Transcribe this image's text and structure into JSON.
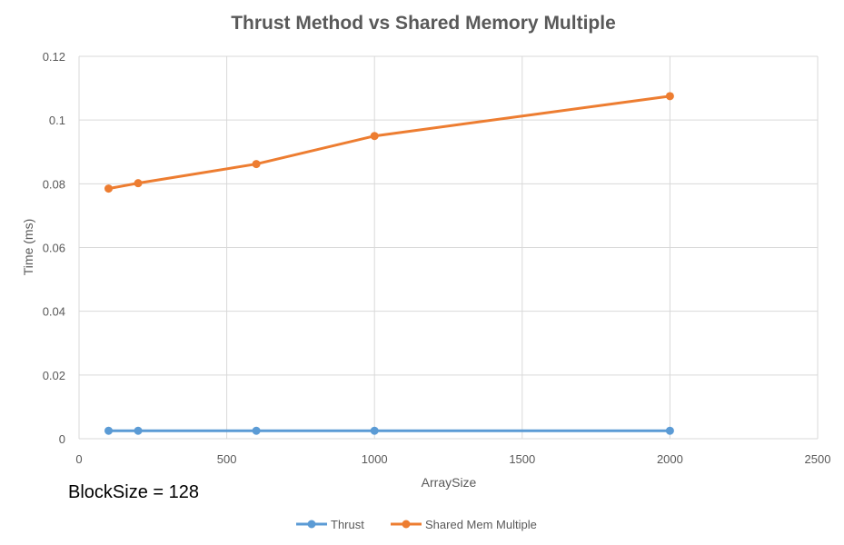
{
  "chart_data": {
    "type": "line",
    "title": "Thrust Method vs Shared Memory Multiple",
    "xlabel": "ArraySize",
    "ylabel": "Time (ms)",
    "xlim": [
      0,
      2500
    ],
    "ylim": [
      0,
      0.12
    ],
    "x_ticks": [
      "0",
      "500",
      "1000",
      "1500",
      "2000",
      "2500"
    ],
    "y_ticks": [
      "0",
      "0.02",
      "0.04",
      "0.06",
      "0.08",
      "0.1",
      "0.12"
    ],
    "grid": true,
    "legend_position": "bottom",
    "annotation": "BlockSize = 128",
    "series": [
      {
        "name": "Thrust",
        "color": "#5B9BD5",
        "x": [
          100,
          200,
          600,
          1000,
          2000
        ],
        "y": [
          0.0025,
          0.0025,
          0.0025,
          0.0025,
          0.0025
        ]
      },
      {
        "name": "Shared Mem Multiple",
        "color": "#ED7D31",
        "x": [
          100,
          200,
          600,
          1000,
          2000
        ],
        "y": [
          0.0785,
          0.0802,
          0.0862,
          0.095,
          0.1075
        ]
      }
    ]
  }
}
